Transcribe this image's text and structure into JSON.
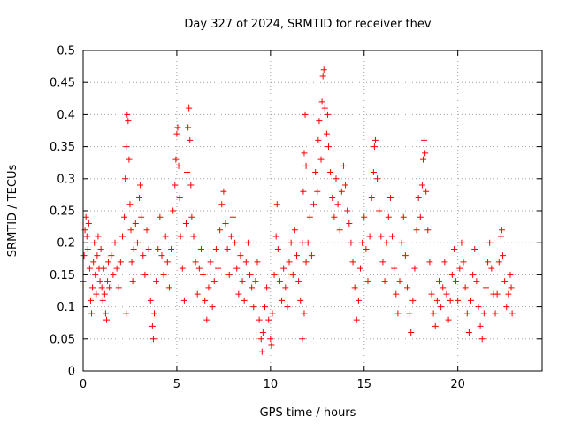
{
  "chart_data": {
    "type": "scatter",
    "title": "Day 327 of 2024, SRMTID for receiver thev",
    "xlabel": "GPS time / hours",
    "ylabel": "SRMTID / TECUs",
    "xlim": [
      0,
      24.5
    ],
    "ylim": [
      0,
      0.5
    ],
    "xticks": [
      0,
      5,
      10,
      15,
      20
    ],
    "xtick_labels": [
      "0",
      "5",
      "10",
      "15",
      "20"
    ],
    "yticks": [
      0,
      0.05,
      0.1,
      0.15,
      0.2,
      0.25,
      0.3,
      0.35,
      0.4,
      0.45,
      0.5
    ],
    "ytick_labels": [
      "0",
      "0.05",
      "0.1",
      "0.15",
      "0.2",
      "0.25",
      "0.3",
      "0.35",
      "0.4",
      "0.45",
      "0.5"
    ],
    "grid": true,
    "marker": "+",
    "color": "#ff0000",
    "series": [
      {
        "name": "thev",
        "points": [
          [
            0.0,
            0.14
          ],
          [
            0.05,
            0.18
          ],
          [
            0.1,
            0.22
          ],
          [
            0.15,
            0.24
          ],
          [
            0.2,
            0.21
          ],
          [
            0.25,
            0.19
          ],
          [
            0.3,
            0.23
          ],
          [
            0.35,
            0.16
          ],
          [
            0.4,
            0.11
          ],
          [
            0.45,
            0.09
          ],
          [
            0.5,
            0.13
          ],
          [
            0.55,
            0.17
          ],
          [
            0.6,
            0.2
          ],
          [
            0.65,
            0.15
          ],
          [
            0.7,
            0.12
          ],
          [
            0.75,
            0.18
          ],
          [
            0.8,
            0.21
          ],
          [
            0.85,
            0.16
          ],
          [
            0.9,
            0.14
          ],
          [
            0.95,
            0.19
          ],
          [
            1.0,
            0.13
          ],
          [
            1.05,
            0.11
          ],
          [
            1.1,
            0.16
          ],
          [
            1.15,
            0.12
          ],
          [
            1.2,
            0.09
          ],
          [
            1.25,
            0.08
          ],
          [
            1.3,
            0.14
          ],
          [
            1.35,
            0.17
          ],
          [
            1.4,
            0.13
          ],
          [
            1.5,
            0.18
          ],
          [
            1.6,
            0.15
          ],
          [
            1.7,
            0.2
          ],
          [
            1.8,
            0.16
          ],
          [
            1.9,
            0.13
          ],
          [
            2.0,
            0.17
          ],
          [
            2.1,
            0.21
          ],
          [
            2.2,
            0.24
          ],
          [
            2.25,
            0.3
          ],
          [
            2.3,
            0.35
          ],
          [
            2.35,
            0.4
          ],
          [
            2.4,
            0.39
          ],
          [
            2.45,
            0.33
          ],
          [
            2.5,
            0.26
          ],
          [
            2.55,
            0.22
          ],
          [
            2.6,
            0.17
          ],
          [
            2.65,
            0.14
          ],
          [
            2.3,
            0.09
          ],
          [
            2.7,
            0.19
          ],
          [
            2.8,
            0.23
          ],
          [
            2.9,
            0.2
          ],
          [
            3.0,
            0.27
          ],
          [
            3.05,
            0.29
          ],
          [
            3.1,
            0.24
          ],
          [
            3.2,
            0.18
          ],
          [
            3.3,
            0.15
          ],
          [
            3.4,
            0.22
          ],
          [
            3.5,
            0.19
          ],
          [
            3.6,
            0.11
          ],
          [
            3.7,
            0.07
          ],
          [
            3.75,
            0.05
          ],
          [
            3.8,
            0.09
          ],
          [
            3.9,
            0.14
          ],
          [
            4.0,
            0.19
          ],
          [
            4.1,
            0.24
          ],
          [
            4.2,
            0.18
          ],
          [
            4.3,
            0.15
          ],
          [
            4.4,
            0.21
          ],
          [
            4.5,
            0.17
          ],
          [
            4.6,
            0.13
          ],
          [
            4.7,
            0.19
          ],
          [
            4.8,
            0.25
          ],
          [
            4.9,
            0.29
          ],
          [
            4.95,
            0.33
          ],
          [
            5.0,
            0.37
          ],
          [
            5.05,
            0.38
          ],
          [
            5.1,
            0.32
          ],
          [
            5.15,
            0.27
          ],
          [
            5.2,
            0.21
          ],
          [
            5.3,
            0.16
          ],
          [
            5.4,
            0.11
          ],
          [
            5.5,
            0.23
          ],
          [
            5.55,
            0.31
          ],
          [
            5.6,
            0.38
          ],
          [
            5.65,
            0.41
          ],
          [
            5.7,
            0.36
          ],
          [
            5.75,
            0.29
          ],
          [
            5.8,
            0.24
          ],
          [
            5.9,
            0.21
          ],
          [
            6.0,
            0.17
          ],
          [
            6.1,
            0.12
          ],
          [
            6.2,
            0.16
          ],
          [
            6.3,
            0.19
          ],
          [
            6.4,
            0.15
          ],
          [
            6.5,
            0.11
          ],
          [
            6.6,
            0.08
          ],
          [
            6.7,
            0.13
          ],
          [
            6.8,
            0.17
          ],
          [
            6.9,
            0.1
          ],
          [
            7.0,
            0.14
          ],
          [
            7.1,
            0.19
          ],
          [
            7.2,
            0.16
          ],
          [
            7.3,
            0.22
          ],
          [
            7.4,
            0.26
          ],
          [
            7.5,
            0.28
          ],
          [
            7.6,
            0.23
          ],
          [
            7.7,
            0.19
          ],
          [
            7.8,
            0.15
          ],
          [
            7.9,
            0.21
          ],
          [
            8.0,
            0.24
          ],
          [
            8.1,
            0.2
          ],
          [
            8.2,
            0.16
          ],
          [
            8.3,
            0.12
          ],
          [
            8.4,
            0.18
          ],
          [
            8.5,
            0.14
          ],
          [
            8.6,
            0.11
          ],
          [
            8.7,
            0.17
          ],
          [
            8.8,
            0.2
          ],
          [
            8.9,
            0.15
          ],
          [
            9.0,
            0.13
          ],
          [
            9.1,
            0.1
          ],
          [
            9.2,
            0.14
          ],
          [
            9.3,
            0.17
          ],
          [
            9.4,
            0.08
          ],
          [
            9.5,
            0.05
          ],
          [
            9.55,
            0.03
          ],
          [
            9.6,
            0.06
          ],
          [
            9.7,
            0.1
          ],
          [
            9.8,
            0.13
          ],
          [
            9.9,
            0.08
          ],
          [
            10.0,
            0.05
          ],
          [
            10.05,
            0.04
          ],
          [
            10.1,
            0.09
          ],
          [
            10.2,
            0.15
          ],
          [
            10.3,
            0.21
          ],
          [
            10.35,
            0.26
          ],
          [
            10.4,
            0.19
          ],
          [
            10.5,
            0.14
          ],
          [
            10.6,
            0.11
          ],
          [
            10.7,
            0.16
          ],
          [
            10.8,
            0.13
          ],
          [
            10.9,
            0.1
          ],
          [
            11.0,
            0.17
          ],
          [
            11.1,
            0.2
          ],
          [
            11.2,
            0.15
          ],
          [
            11.3,
            0.22
          ],
          [
            11.4,
            0.18
          ],
          [
            11.5,
            0.14
          ],
          [
            11.6,
            0.11
          ],
          [
            11.7,
            0.05
          ],
          [
            11.8,
            0.09
          ],
          [
            11.9,
            0.17
          ],
          [
            12.0,
            0.2
          ],
          [
            11.7,
            0.2
          ],
          [
            11.75,
            0.28
          ],
          [
            11.8,
            0.34
          ],
          [
            11.85,
            0.4
          ],
          [
            11.9,
            0.32
          ],
          [
            12.1,
            0.24
          ],
          [
            12.2,
            0.18
          ],
          [
            12.3,
            0.26
          ],
          [
            12.4,
            0.31
          ],
          [
            12.5,
            0.28
          ],
          [
            12.55,
            0.36
          ],
          [
            12.6,
            0.39
          ],
          [
            12.7,
            0.33
          ],
          [
            12.75,
            0.42
          ],
          [
            12.8,
            0.46
          ],
          [
            12.85,
            0.47
          ],
          [
            12.9,
            0.41
          ],
          [
            13.0,
            0.37
          ],
          [
            13.05,
            0.4
          ],
          [
            13.1,
            0.35
          ],
          [
            13.2,
            0.31
          ],
          [
            13.3,
            0.27
          ],
          [
            13.4,
            0.24
          ],
          [
            13.5,
            0.3
          ],
          [
            13.6,
            0.26
          ],
          [
            13.7,
            0.22
          ],
          [
            13.8,
            0.28
          ],
          [
            13.9,
            0.32
          ],
          [
            14.0,
            0.29
          ],
          [
            14.1,
            0.25
          ],
          [
            14.2,
            0.23
          ],
          [
            14.3,
            0.2
          ],
          [
            14.4,
            0.17
          ],
          [
            14.5,
            0.13
          ],
          [
            14.6,
            0.08
          ],
          [
            14.7,
            0.11
          ],
          [
            14.8,
            0.16
          ],
          [
            14.9,
            0.2
          ],
          [
            15.0,
            0.24
          ],
          [
            15.1,
            0.19
          ],
          [
            15.2,
            0.14
          ],
          [
            15.3,
            0.21
          ],
          [
            15.4,
            0.27
          ],
          [
            15.5,
            0.31
          ],
          [
            15.55,
            0.35
          ],
          [
            15.6,
            0.36
          ],
          [
            15.7,
            0.3
          ],
          [
            15.8,
            0.25
          ],
          [
            15.9,
            0.21
          ],
          [
            16.0,
            0.17
          ],
          [
            16.1,
            0.14
          ],
          [
            16.2,
            0.2
          ],
          [
            16.3,
            0.24
          ],
          [
            16.4,
            0.27
          ],
          [
            16.5,
            0.21
          ],
          [
            16.6,
            0.16
          ],
          [
            16.7,
            0.12
          ],
          [
            16.8,
            0.09
          ],
          [
            16.9,
            0.14
          ],
          [
            17.0,
            0.2
          ],
          [
            17.1,
            0.24
          ],
          [
            17.2,
            0.18
          ],
          [
            17.3,
            0.13
          ],
          [
            17.4,
            0.09
          ],
          [
            17.5,
            0.06
          ],
          [
            17.6,
            0.11
          ],
          [
            17.7,
            0.16
          ],
          [
            17.8,
            0.22
          ],
          [
            17.9,
            0.27
          ],
          [
            18.0,
            0.24
          ],
          [
            18.1,
            0.29
          ],
          [
            18.15,
            0.33
          ],
          [
            18.2,
            0.36
          ],
          [
            18.25,
            0.34
          ],
          [
            18.3,
            0.28
          ],
          [
            18.4,
            0.22
          ],
          [
            18.5,
            0.17
          ],
          [
            18.6,
            0.12
          ],
          [
            18.7,
            0.09
          ],
          [
            18.8,
            0.07
          ],
          [
            18.9,
            0.11
          ],
          [
            19.0,
            0.14
          ],
          [
            19.1,
            0.1
          ],
          [
            19.2,
            0.13
          ],
          [
            19.3,
            0.17
          ],
          [
            19.4,
            0.12
          ],
          [
            19.5,
            0.08
          ],
          [
            19.6,
            0.11
          ],
          [
            19.7,
            0.15
          ],
          [
            19.8,
            0.19
          ],
          [
            19.9,
            0.14
          ],
          [
            20.0,
            0.11
          ],
          [
            20.1,
            0.16
          ],
          [
            20.2,
            0.2
          ],
          [
            20.3,
            0.17
          ],
          [
            20.4,
            0.13
          ],
          [
            20.5,
            0.09
          ],
          [
            20.6,
            0.06
          ],
          [
            20.7,
            0.11
          ],
          [
            20.8,
            0.15
          ],
          [
            20.9,
            0.19
          ],
          [
            21.0,
            0.14
          ],
          [
            21.1,
            0.1
          ],
          [
            21.2,
            0.07
          ],
          [
            21.3,
            0.05
          ],
          [
            21.4,
            0.09
          ],
          [
            21.5,
            0.13
          ],
          [
            21.6,
            0.17
          ],
          [
            21.7,
            0.2
          ],
          [
            21.8,
            0.16
          ],
          [
            21.9,
            0.12
          ],
          [
            22.0,
            0.09
          ],
          [
            22.1,
            0.12
          ],
          [
            22.2,
            0.17
          ],
          [
            22.3,
            0.21
          ],
          [
            22.35,
            0.22
          ],
          [
            22.4,
            0.18
          ],
          [
            22.5,
            0.14
          ],
          [
            22.6,
            0.1
          ],
          [
            22.7,
            0.12
          ],
          [
            22.8,
            0.15
          ],
          [
            22.85,
            0.13
          ],
          [
            22.9,
            0.09
          ]
        ]
      }
    ]
  }
}
